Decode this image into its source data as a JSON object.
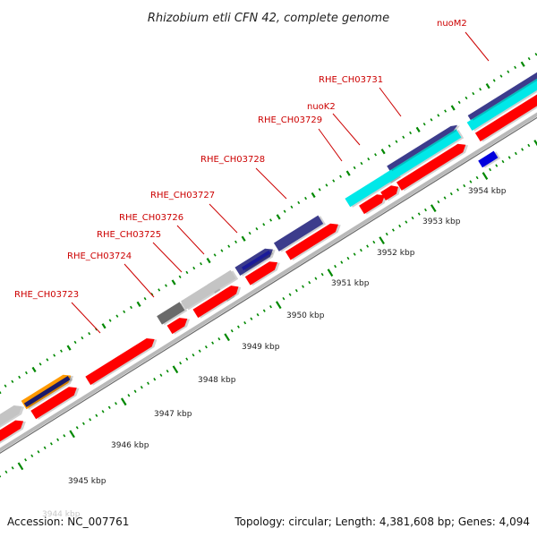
{
  "title": "Rhizobium etli CFN 42, complete genome",
  "footer": {
    "accession": "Accession: NC_007761",
    "summary": "Topology: circular; Length: 4,381,608 bp; Genes: 4,094"
  },
  "colors": {
    "cds": "#ff0000",
    "backbone": "#a8a8a8",
    "tick": "#008800",
    "label": "#cc0000",
    "cog_navy": "#3c3c8c",
    "cog_cyan": "#00e8e8",
    "cog_lightgray": "#c4c4c4",
    "cog_darkgray": "#6a6a6a",
    "cog_orange": "#ff9900",
    "cog_blue": "#0000dd"
  },
  "gene_labels": [
    "nuoM2",
    "RHE_CH03731",
    "nuoK2",
    "RHE_CH03729",
    "RHE_CH03728",
    "RHE_CH03727",
    "RHE_CH03726",
    "RHE_CH03725",
    "RHE_CH03724",
    "RHE_CH03723"
  ],
  "scale_labels": [
    "3944 kbp",
    "3945 kbp",
    "3946 kbp",
    "3947 kbp",
    "3948 kbp",
    "3949 kbp",
    "3950 kbp",
    "3951 kbp",
    "3952 kbp",
    "3953 kbp",
    "3954 kbp"
  ]
}
